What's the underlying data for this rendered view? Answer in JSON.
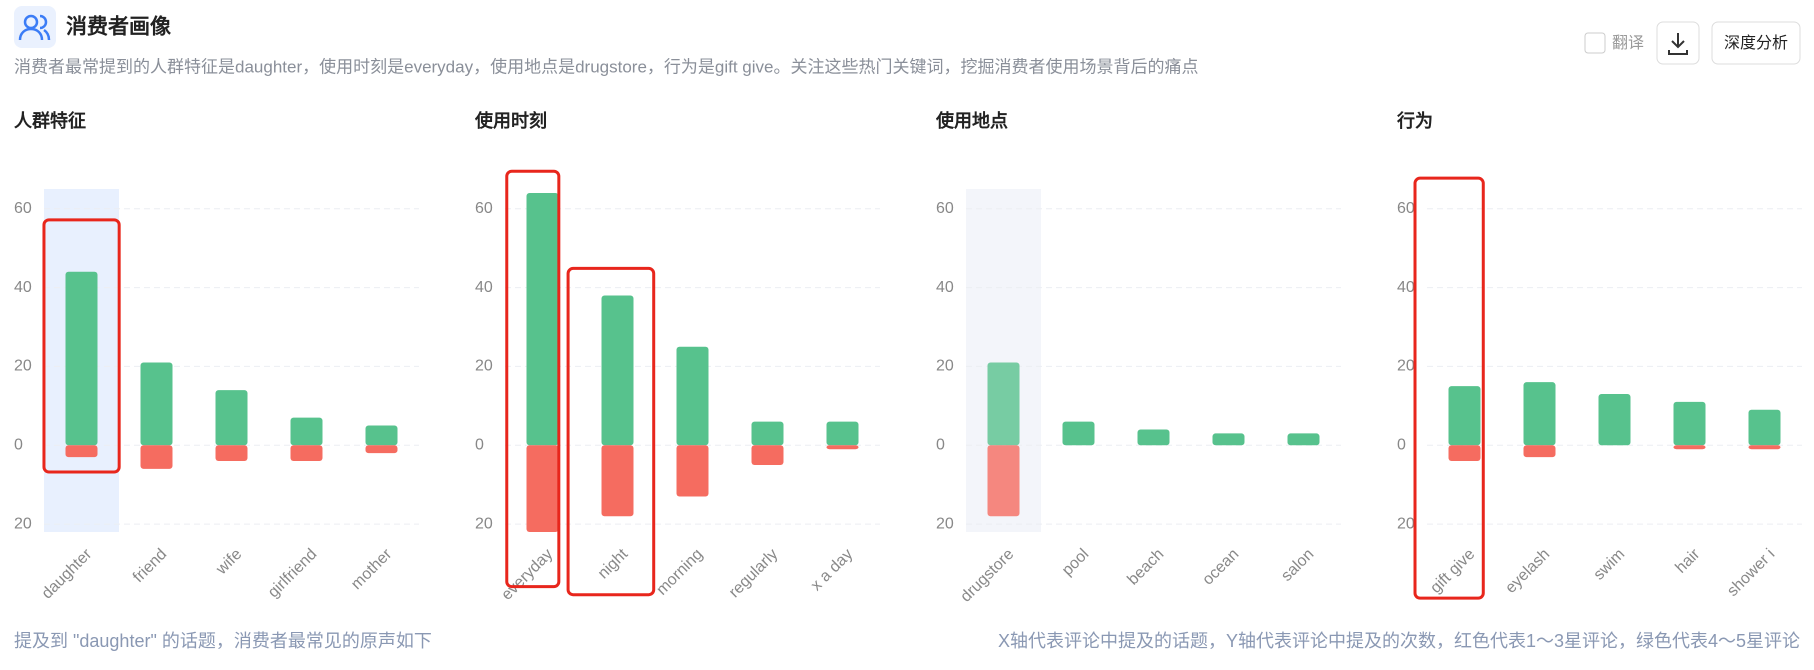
{
  "header": {
    "title": "消费者画像",
    "description": "消费者最常提到的人群特征是daughter，使用时刻是everyday，使用地点是drugstore，行为是gift give。关注这些热门关键词，挖掘消费者使用场景背后的痛点",
    "translate": "翻译",
    "analyze": "深度分析"
  },
  "footer": {
    "left": "提及到 \"daughter\" 的话题，消费者最常见的原声如下",
    "right": "X轴代表评论中提及的话题，Y轴代表评论中提及的次数，红色代表1～3星评论，绿色代表4～5星评论"
  },
  "chart_data": [
    {
      "type": "bar",
      "title": "人群特征",
      "categories": [
        "daughter",
        "friend",
        "wife",
        "girlfriend",
        "mother"
      ],
      "series": [
        {
          "color": "#57c28d",
          "values": [
            44,
            21,
            14,
            7,
            5
          ]
        },
        {
          "color": "#f56c60",
          "values": [
            -3,
            -6,
            -4,
            -4,
            -2
          ]
        }
      ],
      "ylim": [
        -22,
        65
      ],
      "yticks": [
        {
          "value": -20,
          "label": "20"
        },
        0,
        20,
        40,
        60
      ],
      "grid": true
    },
    {
      "type": "bar",
      "title": "使用时刻",
      "categories": [
        "everyday",
        "night",
        "morning",
        "regularly",
        "x a day"
      ],
      "series": [
        {
          "color": "#57c28d",
          "values": [
            64,
            38,
            25,
            6,
            6
          ]
        },
        {
          "color": "#f56c60",
          "values": [
            -22,
            -18,
            -13,
            -5,
            -1
          ]
        }
      ],
      "ylim": [
        -22,
        65
      ],
      "yticks": [
        {
          "value": -20,
          "label": "20"
        },
        0,
        20,
        40,
        60
      ],
      "grid": true
    },
    {
      "type": "bar",
      "title": "使用地点",
      "categories": [
        "drugstore",
        "pool",
        "beach",
        "ocean",
        "salon"
      ],
      "series": [
        {
          "color": "#57c28d",
          "values": [
            21,
            6,
            4,
            3,
            3
          ]
        },
        {
          "color": "#f56c60",
          "values": [
            -18,
            0,
            0,
            0,
            0
          ]
        }
      ],
      "ylim": [
        -22,
        65
      ],
      "yticks": [
        {
          "value": -20,
          "label": "20"
        },
        0,
        20,
        40,
        60
      ],
      "grid": true
    },
    {
      "type": "bar",
      "title": "行为",
      "categories": [
        "gift give",
        "eyelash",
        "swim",
        "hair",
        "shower i"
      ],
      "series": [
        {
          "color": "#57c28d",
          "values": [
            15,
            16,
            13,
            11,
            9
          ]
        },
        {
          "color": "#f56c60",
          "values": [
            -4,
            -3,
            0,
            -1,
            -1
          ]
        }
      ],
      "ylim": [
        -22,
        65
      ],
      "yticks": [
        {
          "value": -20,
          "label": "20"
        },
        0,
        20,
        40,
        60
      ],
      "grid": true
    }
  ]
}
